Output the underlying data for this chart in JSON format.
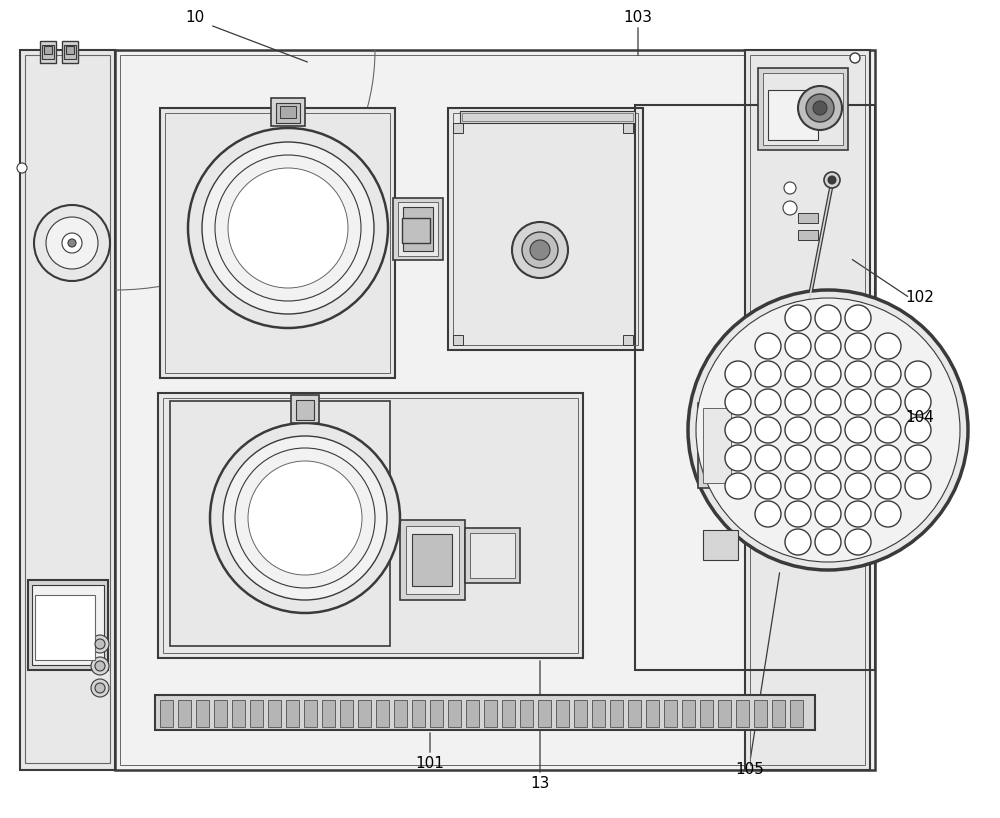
{
  "fig_w": 10.0,
  "fig_h": 8.18,
  "dpi": 100,
  "lc": "#3a3a3a",
  "lc2": "#666666",
  "fc_main": "#f2f2f2",
  "fc_mid": "#e8e8e8",
  "fc_dark": "#d5d5d5",
  "fc_darkest": "#c0c0c0",
  "white": "#ffffff",
  "label_fs": 11
}
